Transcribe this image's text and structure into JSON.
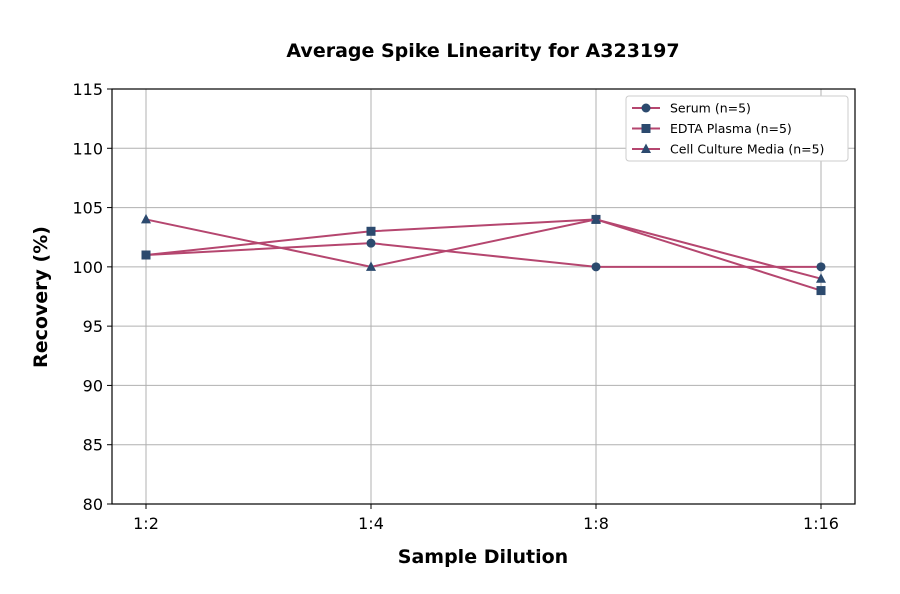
{
  "chart_data": {
    "type": "line",
    "title": "Average Spike Linearity for A323197",
    "xlabel": "Sample Dilution",
    "ylabel": "Recovery (%)",
    "categories": [
      "1:2",
      "1:4",
      "1:8",
      "1:16"
    ],
    "ylim": [
      80,
      115
    ],
    "yticks": [
      80,
      85,
      90,
      95,
      100,
      105,
      110,
      115
    ],
    "grid": true,
    "legend_position": "top-right",
    "line_color": "#b5466f",
    "marker_color": "#2c4a6e",
    "series": [
      {
        "name": "Serum (n=5)",
        "marker": "circle",
        "values": [
          101,
          102,
          100,
          100
        ]
      },
      {
        "name": "EDTA Plasma (n=5)",
        "marker": "square",
        "values": [
          101,
          103,
          104,
          98
        ]
      },
      {
        "name": "Cell Culture Media (n=5)",
        "marker": "triangle",
        "values": [
          104,
          100,
          104,
          99
        ]
      }
    ]
  }
}
